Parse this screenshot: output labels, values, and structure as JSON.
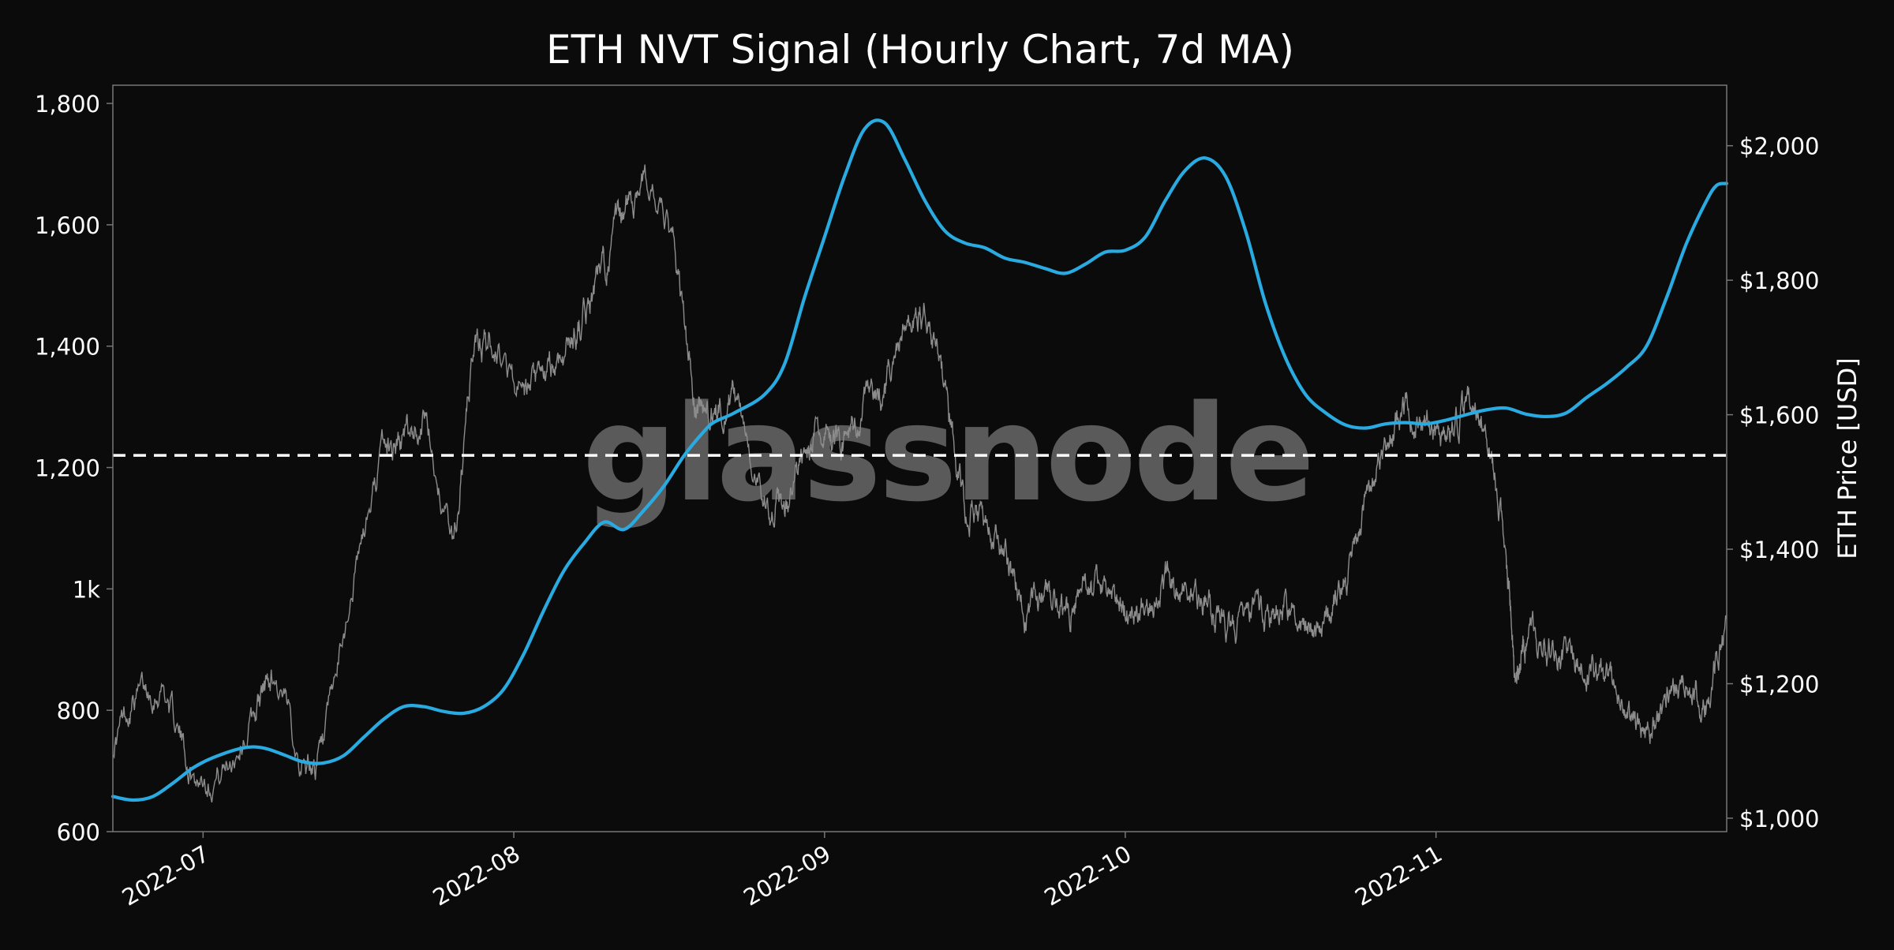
{
  "chart_data": {
    "type": "line",
    "title": "ETH NVT Signal (Hourly Chart, 7d MA)",
    "watermark": "glassnode",
    "right_ylabel": "ETH Price [USD]",
    "x_range": [
      "2022-06-22",
      "2022-11-30"
    ],
    "left_ylim": [
      600,
      1830
    ],
    "right_ylim": [
      980,
      2090
    ],
    "x_ticks": [
      {
        "date": "2022-07-01",
        "label": "2022-07"
      },
      {
        "date": "2022-08-01",
        "label": "2022-08"
      },
      {
        "date": "2022-09-01",
        "label": "2022-09"
      },
      {
        "date": "2022-10-01",
        "label": "2022-10"
      },
      {
        "date": "2022-11-01",
        "label": "2022-11"
      }
    ],
    "left_ticks": [
      {
        "value": 600,
        "label": "600"
      },
      {
        "value": 800,
        "label": "800"
      },
      {
        "value": 1000,
        "label": "1k"
      },
      {
        "value": 1200,
        "label": "1,200"
      },
      {
        "value": 1400,
        "label": "1,400"
      },
      {
        "value": 1600,
        "label": "1,600"
      },
      {
        "value": 1800,
        "label": "1,800"
      }
    ],
    "right_ticks": [
      {
        "value": 1000,
        "label": "$1,000"
      },
      {
        "value": 1200,
        "label": "$1,200"
      },
      {
        "value": 1400,
        "label": "$1,400"
      },
      {
        "value": 1600,
        "label": "$1,600"
      },
      {
        "value": 1800,
        "label": "$1,800"
      },
      {
        "value": 2000,
        "label": "$2,000"
      }
    ],
    "threshold": {
      "value": 1220,
      "style": "dashed",
      "axis": "left"
    },
    "colors": {
      "background": "#0b0b0b",
      "nvt": "#29abe2",
      "price": "#8c8c8c",
      "threshold": "#ffffff",
      "text": "#ffffff",
      "frame": "#777777",
      "watermark": "#6e6e6e"
    },
    "series": [
      {
        "axis": "left",
        "style": "smooth",
        "points": [
          [
            "2022-06-22",
            658
          ],
          [
            "2022-06-24",
            652
          ],
          [
            "2022-06-26",
            658
          ],
          [
            "2022-06-28",
            680
          ],
          [
            "2022-06-30",
            705
          ],
          [
            "2022-07-02",
            722
          ],
          [
            "2022-07-05",
            738
          ],
          [
            "2022-07-07",
            738
          ],
          [
            "2022-07-09",
            727
          ],
          [
            "2022-07-11",
            715
          ],
          [
            "2022-07-13",
            713
          ],
          [
            "2022-07-15",
            725
          ],
          [
            "2022-07-17",
            755
          ],
          [
            "2022-07-19",
            785
          ],
          [
            "2022-07-21",
            806
          ],
          [
            "2022-07-23",
            806
          ],
          [
            "2022-07-25",
            798
          ],
          [
            "2022-07-27",
            795
          ],
          [
            "2022-07-29",
            806
          ],
          [
            "2022-07-31",
            835
          ],
          [
            "2022-08-02",
            893
          ],
          [
            "2022-08-04",
            965
          ],
          [
            "2022-08-06",
            1030
          ],
          [
            "2022-08-08",
            1075
          ],
          [
            "2022-08-10",
            1110
          ],
          [
            "2022-08-12",
            1098
          ],
          [
            "2022-08-14",
            1130
          ],
          [
            "2022-08-16",
            1170
          ],
          [
            "2022-08-18",
            1220
          ],
          [
            "2022-08-20",
            1260
          ],
          [
            "2022-08-21",
            1275
          ],
          [
            "2022-08-23",
            1290
          ],
          [
            "2022-08-26",
            1320
          ],
          [
            "2022-08-28",
            1370
          ],
          [
            "2022-08-30",
            1480
          ],
          [
            "2022-09-01",
            1580
          ],
          [
            "2022-09-03",
            1680
          ],
          [
            "2022-09-05",
            1758
          ],
          [
            "2022-09-07",
            1768
          ],
          [
            "2022-09-09",
            1708
          ],
          [
            "2022-09-11",
            1640
          ],
          [
            "2022-09-13",
            1590
          ],
          [
            "2022-09-15",
            1570
          ],
          [
            "2022-09-17",
            1562
          ],
          [
            "2022-09-19",
            1545
          ],
          [
            "2022-09-21",
            1538
          ],
          [
            "2022-09-23",
            1528
          ],
          [
            "2022-09-25",
            1520
          ],
          [
            "2022-09-27",
            1535
          ],
          [
            "2022-09-29",
            1555
          ],
          [
            "2022-10-01",
            1558
          ],
          [
            "2022-10-03",
            1580
          ],
          [
            "2022-10-05",
            1640
          ],
          [
            "2022-10-07",
            1690
          ],
          [
            "2022-10-09",
            1710
          ],
          [
            "2022-10-11",
            1680
          ],
          [
            "2022-10-13",
            1590
          ],
          [
            "2022-10-15",
            1470
          ],
          [
            "2022-10-17",
            1380
          ],
          [
            "2022-10-19",
            1320
          ],
          [
            "2022-10-21",
            1290
          ],
          [
            "2022-10-23",
            1270
          ],
          [
            "2022-10-25",
            1265
          ],
          [
            "2022-10-27",
            1272
          ],
          [
            "2022-10-29",
            1274
          ],
          [
            "2022-10-31",
            1272
          ],
          [
            "2022-11-02",
            1278
          ],
          [
            "2022-11-04",
            1287
          ],
          [
            "2022-11-06",
            1295
          ],
          [
            "2022-11-08",
            1298
          ],
          [
            "2022-11-10",
            1288
          ],
          [
            "2022-11-12",
            1284
          ],
          [
            "2022-11-14",
            1290
          ],
          [
            "2022-11-16",
            1315
          ],
          [
            "2022-11-18",
            1338
          ],
          [
            "2022-11-20",
            1365
          ],
          [
            "2022-11-22",
            1400
          ],
          [
            "2022-11-24",
            1480
          ],
          [
            "2022-11-26",
            1570
          ],
          [
            "2022-11-28",
            1640
          ],
          [
            "2022-11-29",
            1665
          ],
          [
            "2022-11-30",
            1668
          ]
        ]
      }
    ]
  }
}
